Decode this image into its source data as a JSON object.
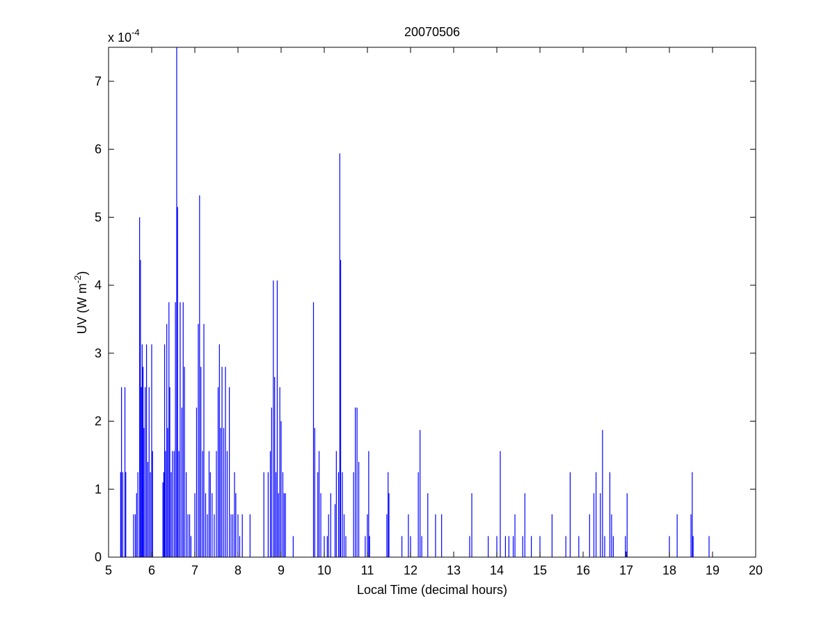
{
  "chart_data": {
    "type": "line",
    "title": "20070506",
    "xlabel": "Local Time (decimal hours)",
    "ylabel_main": "UV (W m",
    "ylabel_sup": "-2",
    "ylabel_close": ")",
    "multiplier_base": "x 10",
    "multiplier_exp": "-4",
    "xlim": [
      5,
      20
    ],
    "ylim": [
      0,
      7.5
    ],
    "xticks": [
      "5",
      "6",
      "7",
      "8",
      "9",
      "10",
      "11",
      "12",
      "13",
      "14",
      "15",
      "16",
      "17",
      "18",
      "19",
      "20"
    ],
    "yticks": [
      "0",
      "1",
      "2",
      "3",
      "4",
      "5",
      "6",
      "7"
    ],
    "grid": false,
    "line_color": "#0000ff",
    "series": [
      {
        "values_unit": "1e-4 W m^-2",
        "points": [
          [
            5.28,
            1.25
          ],
          [
            5.3,
            2.5
          ],
          [
            5.33,
            1.25
          ],
          [
            5.38,
            2.5
          ],
          [
            5.4,
            1.25
          ],
          [
            5.58,
            0.63
          ],
          [
            5.62,
            0.63
          ],
          [
            5.65,
            0.94
          ],
          [
            5.68,
            1.25
          ],
          [
            5.72,
            5.0
          ],
          [
            5.74,
            4.37
          ],
          [
            5.76,
            2.5
          ],
          [
            5.78,
            3.13
          ],
          [
            5.8,
            2.8
          ],
          [
            5.82,
            1.9
          ],
          [
            5.85,
            2.5
          ],
          [
            5.88,
            3.13
          ],
          [
            5.91,
            1.4
          ],
          [
            5.94,
            2.5
          ],
          [
            5.97,
            1.25
          ],
          [
            6.0,
            3.13
          ],
          [
            6.02,
            1.56
          ],
          [
            6.26,
            1.1
          ],
          [
            6.28,
            1.25
          ],
          [
            6.3,
            3.13
          ],
          [
            6.32,
            1.56
          ],
          [
            6.35,
            3.43
          ],
          [
            6.37,
            1.9
          ],
          [
            6.4,
            3.75
          ],
          [
            6.42,
            2.5
          ],
          [
            6.45,
            1.25
          ],
          [
            6.48,
            1.56
          ],
          [
            6.52,
            1.56
          ],
          [
            6.55,
            3.75
          ],
          [
            6.58,
            7.5
          ],
          [
            6.6,
            5.15
          ],
          [
            6.63,
            1.56
          ],
          [
            6.66,
            3.75
          ],
          [
            6.7,
            2.2
          ],
          [
            6.73,
            3.75
          ],
          [
            6.76,
            2.8
          ],
          [
            6.8,
            1.25
          ],
          [
            6.84,
            0.63
          ],
          [
            6.88,
            0.63
          ],
          [
            6.91,
            0.31
          ],
          [
            7.0,
            0.94
          ],
          [
            7.04,
            2.2
          ],
          [
            7.08,
            3.43
          ],
          [
            7.11,
            5.32
          ],
          [
            7.14,
            2.8
          ],
          [
            7.18,
            1.56
          ],
          [
            7.21,
            3.43
          ],
          [
            7.25,
            0.94
          ],
          [
            7.29,
            0.63
          ],
          [
            7.33,
            1.56
          ],
          [
            7.36,
            1.25
          ],
          [
            7.4,
            0.94
          ],
          [
            7.45,
            0.63
          ],
          [
            7.5,
            1.56
          ],
          [
            7.54,
            2.5
          ],
          [
            7.57,
            3.13
          ],
          [
            7.6,
            1.9
          ],
          [
            7.63,
            2.8
          ],
          [
            7.67,
            1.9
          ],
          [
            7.71,
            2.8
          ],
          [
            7.75,
            1.56
          ],
          [
            7.8,
            2.5
          ],
          [
            7.84,
            0.63
          ],
          [
            7.88,
            0.63
          ],
          [
            7.92,
            1.25
          ],
          [
            7.95,
            0.94
          ],
          [
            8.0,
            0.63
          ],
          [
            8.04,
            0.31
          ],
          [
            8.1,
            0.63
          ],
          [
            8.28,
            0.63
          ],
          [
            8.6,
            1.25
          ],
          [
            8.7,
            1.25
          ],
          [
            8.75,
            1.56
          ],
          [
            8.78,
            2.2
          ],
          [
            8.82,
            4.07
          ],
          [
            8.85,
            2.65
          ],
          [
            8.88,
            1.25
          ],
          [
            8.91,
            4.07
          ],
          [
            8.94,
            0.94
          ],
          [
            8.97,
            2.5
          ],
          [
            9.0,
            2.0
          ],
          [
            9.04,
            1.25
          ],
          [
            9.07,
            0.94
          ],
          [
            9.1,
            0.94
          ],
          [
            9.28,
            0.31
          ],
          [
            9.75,
            3.75
          ],
          [
            9.78,
            1.9
          ],
          [
            9.85,
            1.25
          ],
          [
            9.88,
            1.56
          ],
          [
            9.92,
            0.94
          ],
          [
            10.0,
            0.31
          ],
          [
            10.07,
            0.31
          ],
          [
            10.1,
            0.63
          ],
          [
            10.15,
            0.94
          ],
          [
            10.25,
            0.78
          ],
          [
            10.28,
            1.56
          ],
          [
            10.33,
            1.25
          ],
          [
            10.36,
            5.94
          ],
          [
            10.38,
            4.37
          ],
          [
            10.42,
            1.25
          ],
          [
            10.46,
            0.63
          ],
          [
            10.5,
            0.31
          ],
          [
            10.68,
            1.25
          ],
          [
            10.72,
            2.2
          ],
          [
            10.76,
            2.2
          ],
          [
            10.8,
            1.4
          ],
          [
            10.95,
            0.31
          ],
          [
            11.0,
            0.63
          ],
          [
            11.03,
            1.56
          ],
          [
            11.05,
            0.31
          ],
          [
            11.45,
            0.63
          ],
          [
            11.48,
            1.25
          ],
          [
            11.5,
            0.94
          ],
          [
            11.8,
            0.31
          ],
          [
            11.95,
            0.63
          ],
          [
            12.0,
            0.31
          ],
          [
            12.18,
            1.25
          ],
          [
            12.22,
            1.87
          ],
          [
            12.26,
            0.31
          ],
          [
            12.4,
            0.94
          ],
          [
            12.58,
            0.63
          ],
          [
            12.72,
            0.63
          ],
          [
            13.37,
            0.31
          ],
          [
            13.42,
            0.94
          ],
          [
            13.8,
            0.31
          ],
          [
            14.0,
            0.31
          ],
          [
            14.08,
            1.56
          ],
          [
            14.2,
            0.31
          ],
          [
            14.28,
            0.31
          ],
          [
            14.38,
            0.31
          ],
          [
            14.42,
            0.63
          ],
          [
            14.6,
            0.31
          ],
          [
            14.65,
            0.94
          ],
          [
            14.8,
            0.31
          ],
          [
            15.0,
            0.31
          ],
          [
            15.28,
            0.63
          ],
          [
            15.6,
            0.31
          ],
          [
            15.7,
            1.25
          ],
          [
            15.9,
            0.31
          ],
          [
            16.15,
            0.63
          ],
          [
            16.25,
            0.94
          ],
          [
            16.3,
            1.25
          ],
          [
            16.4,
            0.94
          ],
          [
            16.45,
            1.87
          ],
          [
            16.5,
            0.31
          ],
          [
            16.62,
            1.25
          ],
          [
            16.66,
            0.63
          ],
          [
            16.7,
            0.31
          ],
          [
            16.98,
            0.31
          ],
          [
            17.02,
            0.94
          ],
          [
            18.0,
            0.31
          ],
          [
            18.18,
            0.63
          ],
          [
            18.5,
            0.63
          ],
          [
            18.53,
            1.25
          ],
          [
            18.55,
            0.31
          ],
          [
            18.92,
            0.31
          ]
        ]
      }
    ]
  }
}
